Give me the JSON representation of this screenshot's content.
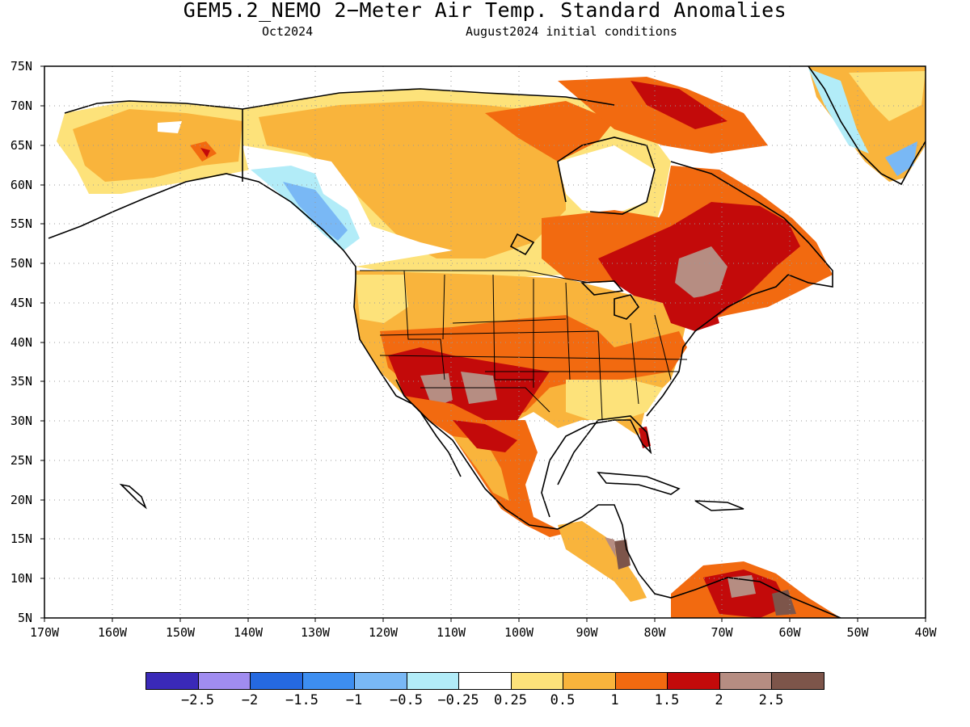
{
  "title": "GEM5.2_NEMO 2−Meter Air Temp. Standard Anomalies",
  "subtitle_left": "Oct2024",
  "subtitle_right": "August2024 initial conditions",
  "lat_labels": [
    "75N",
    "70N",
    "65N",
    "60N",
    "55N",
    "50N",
    "45N",
    "40N",
    "35N",
    "30N",
    "25N",
    "20N",
    "15N",
    "10N",
    "5N"
  ],
  "lon_labels": [
    "170W",
    "160W",
    "150W",
    "140W",
    "130W",
    "120W",
    "110W",
    "100W",
    "90W",
    "80W",
    "70W",
    "60W",
    "50W",
    "40W"
  ],
  "colorbar": {
    "colors": [
      "#3a29b8",
      "#a08cf0",
      "#2569e0",
      "#3d8ef0",
      "#79b8f5",
      "#b2ecf8",
      "#ffffff",
      "#fde27a",
      "#f9b43c",
      "#f26a10",
      "#c30a0a",
      "#b68d82",
      "#7d554a"
    ],
    "labels": [
      "−2.5",
      "−2",
      "−1.5",
      "−1",
      "−0.5",
      "−0.25",
      "0.25",
      "0.5",
      "1",
      "1.5",
      "2",
      "2.5"
    ]
  }
}
